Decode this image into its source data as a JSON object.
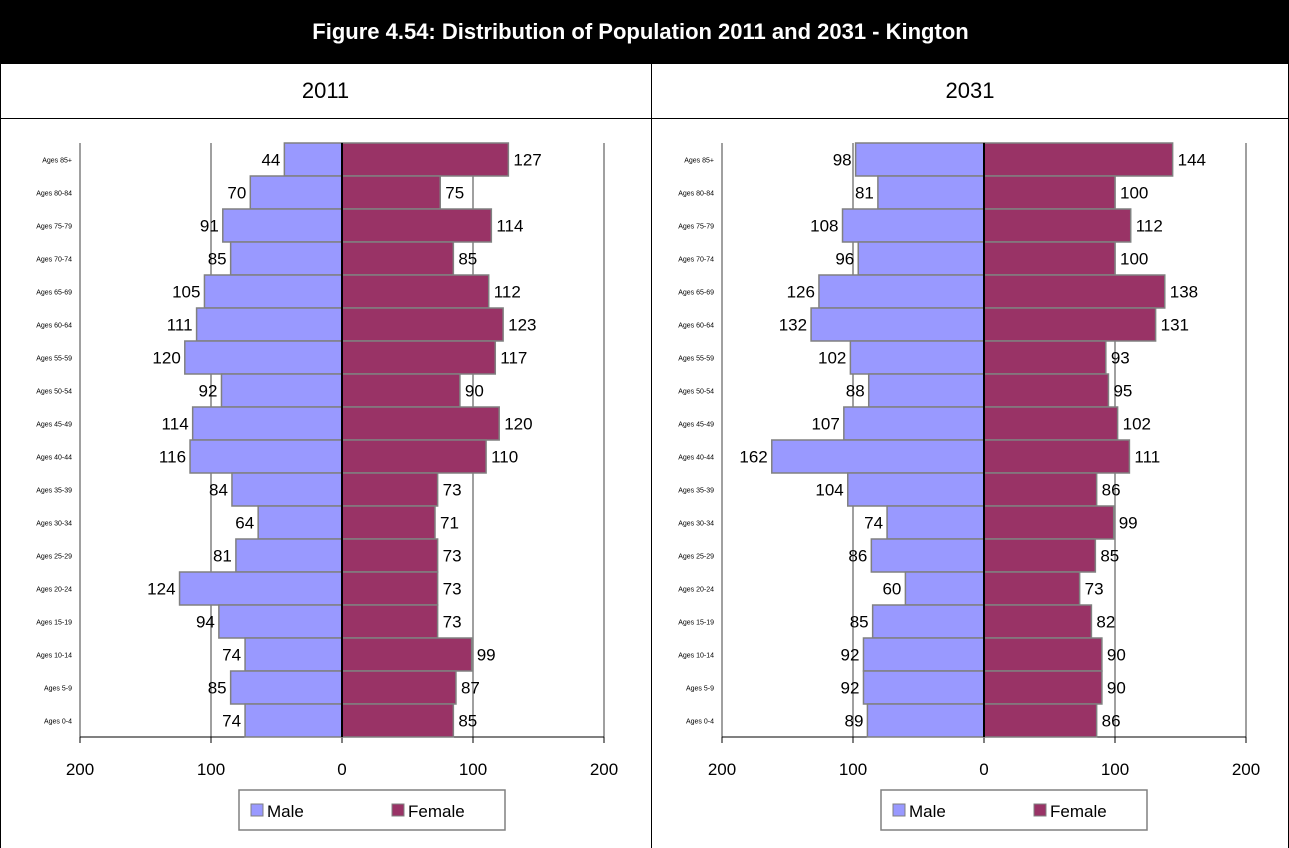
{
  "title": "Figure 4.54: Distribution of Population 2011 and 2031 - Kington",
  "colors": {
    "male": "#9999FF",
    "female": "#993366",
    "title_bg": "#000000"
  },
  "chart_data": [
    {
      "type": "bar",
      "title": "2011",
      "orientation": "horizontal",
      "categories": [
        "Ages 85+",
        "Ages 80-84",
        "Ages 75-79",
        "Ages 70-74",
        "Ages 65-69",
        "Ages 60-64",
        "Ages 55-59",
        "Ages 50-54",
        "Ages 45-49",
        "Ages 40-44",
        "Ages 35-39",
        "Ages 30-34",
        "Ages 25-29",
        "Ages 20-24",
        "Ages 15-19",
        "Ages 10-14",
        "Ages 5-9",
        "Ages 0-4"
      ],
      "series": [
        {
          "name": "Male",
          "values": [
            44,
            70,
            91,
            85,
            105,
            111,
            120,
            92,
            114,
            116,
            84,
            64,
            81,
            124,
            94,
            74,
            85,
            74
          ]
        },
        {
          "name": "Female",
          "values": [
            127,
            75,
            114,
            85,
            112,
            123,
            117,
            90,
            120,
            110,
            73,
            71,
            73,
            73,
            73,
            99,
            87,
            85
          ]
        }
      ],
      "xlim": [
        -200,
        200
      ],
      "xticks": [
        "200",
        "100",
        "0",
        "100",
        "200"
      ],
      "legend": [
        "Male",
        "Female"
      ],
      "legend_position": "bottom"
    },
    {
      "type": "bar",
      "title": "2031",
      "orientation": "horizontal",
      "categories": [
        "Ages 85+",
        "Ages 80-84",
        "Ages 75-79",
        "Ages 70-74",
        "Ages 65-69",
        "Ages 60-64",
        "Ages 55-59",
        "Ages 50-54",
        "Ages 45-49",
        "Ages 40-44",
        "Ages 35-39",
        "Ages 30-34",
        "Ages 25-29",
        "Ages 20-24",
        "Ages 15-19",
        "Ages 10-14",
        "Ages 5-9",
        "Ages 0-4"
      ],
      "series": [
        {
          "name": "Male",
          "values": [
            98,
            81,
            108,
            96,
            126,
            132,
            102,
            88,
            107,
            162,
            104,
            74,
            86,
            60,
            85,
            92,
            92,
            89
          ]
        },
        {
          "name": "Female",
          "values": [
            144,
            100,
            112,
            100,
            138,
            131,
            93,
            95,
            102,
            111,
            86,
            99,
            85,
            73,
            82,
            90,
            90,
            86
          ]
        }
      ],
      "xlim": [
        -200,
        200
      ],
      "xticks": [
        "200",
        "100",
        "0",
        "100",
        "200"
      ],
      "legend": [
        "Male",
        "Female"
      ],
      "legend_position": "bottom"
    }
  ]
}
